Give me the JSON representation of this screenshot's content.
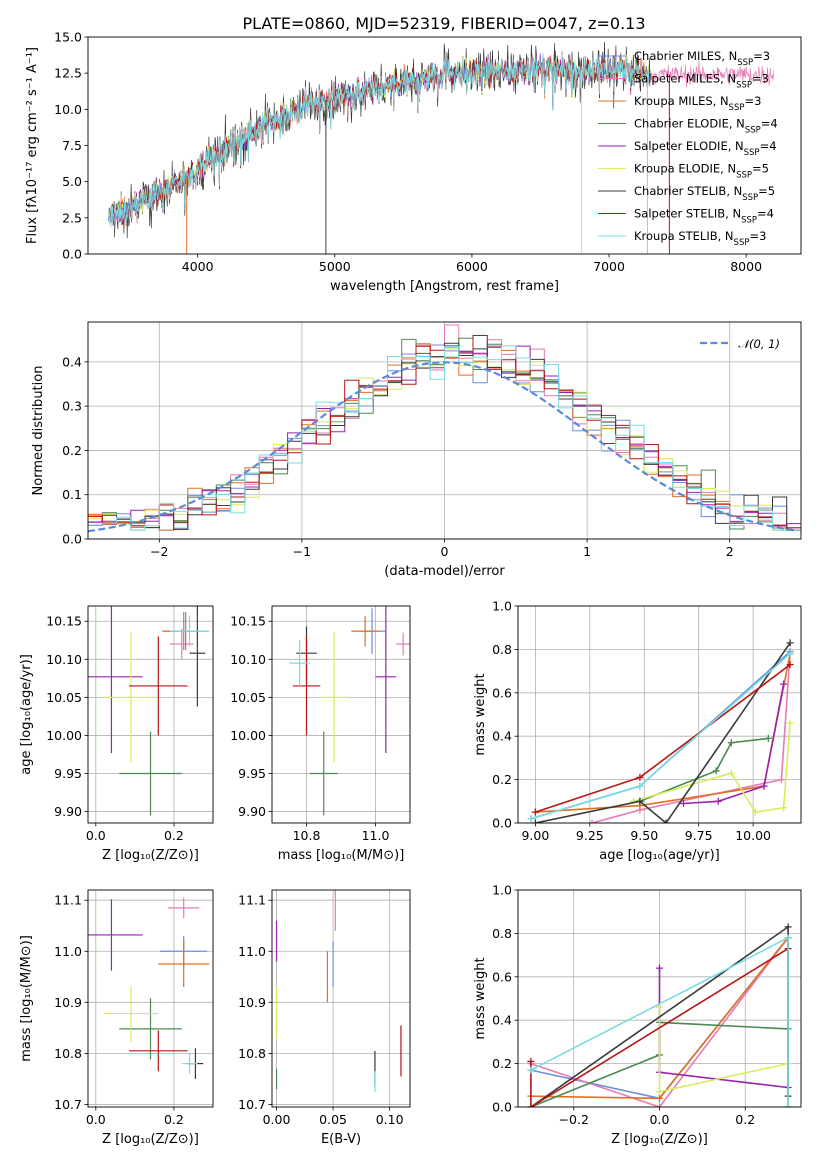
{
  "figure": {
    "title": "PLATE=0860, MJD=52319, FIBERID=0047, z=0.13"
  },
  "colors": {
    "chabrier_miles": "#6a8fe0",
    "salpeter_miles": "#e57ab4",
    "kroupa_miles": "#e07020",
    "chabrier_elodie": "#4a8a50",
    "salpeter_elodie": "#9a22b0",
    "kroupa_elodie": "#d8ec5a",
    "chabrier_stelib": "#3a3a3a",
    "salpeter_stelib": "#b81414",
    "kroupa_stelib": "#7adce0",
    "normal_curve": "#5a8ad8"
  },
  "chart_data": [
    {
      "id": "spectrum",
      "type": "line",
      "title": "PLATE=0860, MJD=52319, FIBERID=0047, z=0.13",
      "xlabel": "wavelength [Angstrom, rest frame]",
      "ylabel": "Flux [fλ10⁻¹⁷ erg cm⁻² s⁻¹ A⁻¹]",
      "xlim": [
        3200,
        8400
      ],
      "ylim": [
        0,
        15
      ],
      "xticks": [
        4000,
        5000,
        6000,
        7000,
        8000
      ],
      "yticks": [
        0.0,
        2.5,
        5.0,
        7.5,
        10.0,
        12.5,
        15.0
      ],
      "legend_position": "top-right",
      "legend": [
        {
          "label": "Chabrier MILES, N",
          "sub": "SSP",
          "suffix": "=3"
        },
        {
          "label": "Salpeter MILES, N",
          "sub": "SSP",
          "suffix": "=3"
        },
        {
          "label": "Kroupa MILES, N",
          "sub": "SSP",
          "suffix": "=3"
        },
        {
          "label": "Chabrier ELODIE, N",
          "sub": "SSP",
          "suffix": "=4"
        },
        {
          "label": "Salpeter ELODIE, N",
          "sub": "SSP",
          "suffix": "=4"
        },
        {
          "label": "Kroupa ELODIE, N",
          "sub": "SSP",
          "suffix": "=5"
        },
        {
          "label": "Chabrier STELIB, N",
          "sub": "SSP",
          "suffix": "=5"
        },
        {
          "label": "Salpeter STELIB, N",
          "sub": "SSP",
          "suffix": "=4"
        },
        {
          "label": "Kroupa STELIB, N",
          "sub": "SSP",
          "suffix": "=3"
        }
      ],
      "continuum": {
        "x": [
          3350,
          3500,
          3650,
          3800,
          3950,
          4100,
          4250,
          4400,
          4600,
          4800,
          5000,
          5200,
          5400,
          5600,
          5800,
          6000,
          6200,
          6400,
          6600,
          6800,
          7000,
          7200,
          7300
        ],
        "y": [
          2.5,
          3.0,
          4.0,
          4.5,
          5.5,
          6.5,
          7.6,
          8.5,
          9.5,
          10.3,
          10.8,
          11.2,
          11.6,
          12.0,
          12.6,
          12.4,
          12.6,
          12.8,
          12.8,
          12.7,
          12.8,
          12.6,
          12.4
        ]
      },
      "spikes": [
        {
          "x": 4935,
          "y": 0.0
        },
        {
          "x": 6800,
          "y": 0.0
        },
        {
          "x": 7440,
          "y": 0.0
        },
        {
          "x": 7280,
          "y": 0.0
        },
        {
          "x": 3920,
          "y": 0.0
        }
      ]
    },
    {
      "id": "residual-hist",
      "type": "step",
      "xlabel": "(data-model)/error",
      "ylabel": "Normed distribution",
      "xlim": [
        -2.5,
        2.5
      ],
      "ylim": [
        0,
        0.49
      ],
      "xticks": [
        -2,
        -1,
        0,
        1,
        2
      ],
      "yticks": [
        0.0,
        0.1,
        0.2,
        0.3,
        0.4
      ],
      "bin_width": 0.1,
      "legend": [
        {
          "label": "𝒩(0, 1)"
        }
      ],
      "legend_position": "top-right"
    },
    {
      "id": "age-vs-Z",
      "type": "errorbar",
      "xlabel": "Z [log₁₀(Z/Z⊙)]",
      "ylabel": "age  [log₁₀(age/yr)]",
      "xlim": [
        -0.02,
        0.3
      ],
      "ylim": [
        9.885,
        10.17
      ],
      "xticks": [
        0.0,
        0.2
      ],
      "yticks": [
        9.9,
        9.95,
        10.0,
        10.05,
        10.1,
        10.15
      ],
      "points": [
        {
          "series": "chabrier_miles",
          "x": 0.225,
          "y": 10.137,
          "xerr": 0.05,
          "yerr": 0.025
        },
        {
          "series": "salpeter_miles",
          "x": 0.22,
          "y": 10.12,
          "xerr": 0.03,
          "yerr": 0.02
        },
        {
          "series": "kroupa_miles",
          "x": 0.23,
          "y": 10.137,
          "xerr": 0.06,
          "yerr": 0.025
        },
        {
          "series": "chabrier_elodie",
          "x": 0.14,
          "y": 9.95,
          "xerr": 0.08,
          "yerr": 0.055
        },
        {
          "series": "salpeter_elodie",
          "x": 0.04,
          "y": 10.077,
          "xerr": 0.08,
          "yerr": 0.1
        },
        {
          "series": "kroupa_elodie",
          "x": 0.09,
          "y": 10.05,
          "xerr": 0.07,
          "yerr": 0.085
        },
        {
          "series": "chabrier_stelib",
          "x": 0.26,
          "y": 10.108,
          "xerr": 0.02,
          "yerr": 0.07
        },
        {
          "series": "salpeter_stelib",
          "x": 0.16,
          "y": 10.065,
          "xerr": 0.075,
          "yerr": 0.065
        },
        {
          "series": "kroupa_stelib",
          "x": 0.24,
          "y": 10.137,
          "xerr": 0.05,
          "yerr": 0.02
        }
      ]
    },
    {
      "id": "age-vs-mass",
      "type": "errorbar",
      "xlabel": "mass [log₁₀(M/M⊙)]",
      "ylabel": "",
      "xlim": [
        10.7,
        11.1
      ],
      "ylim": [
        9.885,
        10.17
      ],
      "xticks": [
        10.8,
        11.0
      ],
      "yticks": [
        9.9,
        9.95,
        10.0,
        10.05,
        10.1,
        10.15
      ],
      "points": [
        {
          "series": "chabrier_miles",
          "x": 10.99,
          "y": 10.137,
          "xerr": 0.04,
          "yerr": 0.03
        },
        {
          "series": "salpeter_miles",
          "x": 11.08,
          "y": 10.12,
          "xerr": 0.02,
          "yerr": 0.015
        },
        {
          "series": "kroupa_miles",
          "x": 10.97,
          "y": 10.137,
          "xerr": 0.04,
          "yerr": 0.02
        },
        {
          "series": "chabrier_elodie",
          "x": 10.85,
          "y": 9.95,
          "xerr": 0.04,
          "yerr": 0.055
        },
        {
          "series": "salpeter_elodie",
          "x": 11.03,
          "y": 10.077,
          "xerr": 0.03,
          "yerr": 0.1
        },
        {
          "series": "kroupa_elodie",
          "x": 10.88,
          "y": 10.05,
          "xerr": 0.04,
          "yerr": 0.085
        },
        {
          "series": "chabrier_stelib",
          "x": 10.8,
          "y": 10.108,
          "xerr": 0.03,
          "yerr": 0.035
        },
        {
          "series": "salpeter_stelib",
          "x": 10.8,
          "y": 10.065,
          "xerr": 0.04,
          "yerr": 0.065
        },
        {
          "series": "kroupa_stelib",
          "x": 10.78,
          "y": 10.095,
          "xerr": 0.03,
          "yerr": 0.03
        }
      ]
    },
    {
      "id": "mass-weight-vs-age",
      "type": "line",
      "xlabel": "age  [log₁₀(age/yr)]",
      "ylabel": "mass weight",
      "xlim": [
        8.92,
        10.22
      ],
      "ylim": [
        0,
        1.0
      ],
      "xticks": [
        9.0,
        9.25,
        9.5,
        9.75,
        10.0
      ],
      "yticks": [
        0.0,
        0.2,
        0.4,
        0.6,
        0.8,
        1.0
      ],
      "series": [
        {
          "name": "chabrier_miles",
          "x": [
            8.98,
            9.48,
            10.17
          ],
          "y": [
            0.02,
            0.17,
            0.79
          ]
        },
        {
          "name": "salpeter_miles",
          "x": [
            9.26,
            9.48,
            10.13,
            10.17
          ],
          "y": [
            0.0,
            0.06,
            0.2,
            0.78
          ]
        },
        {
          "name": "kroupa_miles",
          "x": [
            9.0,
            9.48,
            10.05,
            10.17
          ],
          "y": [
            0.05,
            0.08,
            0.17,
            0.78
          ]
        },
        {
          "name": "chabrier_elodie",
          "x": [
            9.48,
            9.83,
            9.9,
            10.07
          ],
          "y": [
            0.1,
            0.24,
            0.37,
            0.39
          ]
        },
        {
          "name": "salpeter_elodie",
          "x": [
            9.68,
            9.84,
            10.05,
            10.14
          ],
          "y": [
            0.09,
            0.1,
            0.17,
            0.64
          ]
        },
        {
          "name": "kroupa_elodie",
          "x": [
            9.45,
            9.9,
            10.01,
            10.14,
            10.17
          ],
          "y": [
            0.1,
            0.23,
            0.05,
            0.07,
            0.46
          ]
        },
        {
          "name": "chabrier_stelib",
          "x": [
            9.0,
            9.48,
            9.6,
            10.17
          ],
          "y": [
            0.0,
            0.1,
            0.0,
            0.83
          ]
        },
        {
          "name": "salpeter_stelib",
          "x": [
            9.0,
            9.48,
            10.17
          ],
          "y": [
            0.05,
            0.21,
            0.73
          ]
        },
        {
          "name": "kroupa_stelib",
          "x": [
            8.98,
            9.48,
            10.17
          ],
          "y": [
            0.02,
            0.17,
            0.78
          ]
        }
      ]
    },
    {
      "id": "mass-vs-Z",
      "type": "errorbar",
      "xlabel": "Z [log₁₀(Z/Z⊙)]",
      "ylabel": "mass [log₁₀(M/M⊙)]",
      "xlim": [
        -0.02,
        0.3
      ],
      "ylim": [
        10.695,
        11.12
      ],
      "xticks": [
        0.0,
        0.2
      ],
      "yticks": [
        10.7,
        10.8,
        10.9,
        11.0,
        11.1
      ],
      "points": [
        {
          "series": "chabrier_miles",
          "x": 0.225,
          "y": 11.0,
          "xerr": 0.06,
          "yerr": 0.03
        },
        {
          "series": "salpeter_miles",
          "x": 0.225,
          "y": 11.085,
          "xerr": 0.04,
          "yerr": 0.02
        },
        {
          "series": "kroupa_miles",
          "x": 0.225,
          "y": 10.975,
          "xerr": 0.065,
          "yerr": 0.045
        },
        {
          "series": "chabrier_elodie",
          "x": 0.14,
          "y": 10.848,
          "xerr": 0.08,
          "yerr": 0.06
        },
        {
          "series": "salpeter_elodie",
          "x": 0.04,
          "y": 11.032,
          "xerr": 0.08,
          "yerr": 0.07
        },
        {
          "series": "kroupa_elodie",
          "x": 0.09,
          "y": 10.878,
          "xerr": 0.07,
          "yerr": 0.055
        },
        {
          "series": "chabrier_stelib",
          "x": 0.255,
          "y": 10.78,
          "xerr": 0.02,
          "yerr": 0.03
        },
        {
          "series": "salpeter_stelib",
          "x": 0.16,
          "y": 10.805,
          "xerr": 0.075,
          "yerr": 0.04
        },
        {
          "series": "kroupa_stelib",
          "x": 0.24,
          "y": 10.78,
          "xerr": 0.02,
          "yerr": 0.02
        }
      ]
    },
    {
      "id": "mass-vs-ebv",
      "type": "errorbar",
      "xlabel": "E(B-V)",
      "ylabel": "",
      "xlim": [
        -0.004,
        0.118
      ],
      "ylim": [
        10.695,
        11.12
      ],
      "xticks": [
        0.0,
        0.05,
        0.1
      ],
      "yticks": [
        10.7,
        10.8,
        10.9,
        11.0,
        11.1
      ],
      "points": [
        {
          "series": "chabrier_miles",
          "x": 0.05,
          "y": 10.975,
          "xerr": 0.0,
          "yerr": 0.045
        },
        {
          "series": "salpeter_miles",
          "x": 0.052,
          "y": 11.08,
          "xerr": 0.0,
          "yerr": 0.04
        },
        {
          "series": "kroupa_miles",
          "x": 0.045,
          "y": 10.95,
          "xerr": 0.0,
          "yerr": 0.05
        },
        {
          "series": "chabrier_elodie",
          "x": 0.0,
          "y": 10.75,
          "xerr": 0.0,
          "yerr": 0.02
        },
        {
          "series": "salpeter_elodie",
          "x": 0.0,
          "y": 11.02,
          "xerr": 0.0,
          "yerr": 0.04
        },
        {
          "series": "kroupa_elodie",
          "x": 0.0,
          "y": 10.88,
          "xerr": 0.0,
          "yerr": 0.05
        },
        {
          "series": "chabrier_stelib",
          "x": 0.087,
          "y": 10.77,
          "xerr": 0.0,
          "yerr": 0.035
        },
        {
          "series": "salpeter_stelib",
          "x": 0.11,
          "y": 10.805,
          "xerr": 0.0,
          "yerr": 0.05
        },
        {
          "series": "kroupa_stelib",
          "x": 0.087,
          "y": 10.745,
          "xerr": 0.0,
          "yerr": 0.02
        }
      ]
    },
    {
      "id": "mass-weight-vs-Z",
      "type": "line",
      "xlabel": "Z [log₁₀(Z/Z⊙)]",
      "ylabel": "mass weight",
      "xlim": [
        -0.33,
        0.33
      ],
      "ylim": [
        0,
        1.0
      ],
      "xticks": [
        -0.2,
        0.0,
        0.2
      ],
      "yticks": [
        0.0,
        0.2,
        0.4,
        0.6,
        0.8,
        1.0
      ],
      "series": [
        {
          "name": "chabrier_miles",
          "x": [
            -0.3,
            0.0,
            0.3,
            0.3
          ],
          "y": [
            0.17,
            0.04,
            0.78,
            0.0
          ]
        },
        {
          "name": "salpeter_miles",
          "x": [
            -0.3,
            0.0,
            0.3,
            0.3
          ],
          "y": [
            0.2,
            0.0,
            0.78,
            0.0
          ]
        },
        {
          "name": "kroupa_miles",
          "x": [
            -0.3,
            0.0,
            0.3,
            0.3
          ],
          "y": [
            0.05,
            0.04,
            0.78,
            0.0
          ]
        },
        {
          "name": "chabrier_elodie",
          "x": [
            -0.3,
            0.0,
            0.0,
            0.3
          ],
          "y": [
            0.0,
            0.24,
            0.39,
            0.36
          ]
        },
        {
          "name": "salpeter_elodie",
          "x": [
            0.0,
            0.0,
            0.3
          ],
          "y": [
            0.64,
            0.16,
            0.09
          ]
        },
        {
          "name": "kroupa_elodie",
          "x": [
            0.0,
            0.0,
            0.3
          ],
          "y": [
            0.46,
            0.07,
            0.2
          ]
        },
        {
          "name": "chabrier_stelib",
          "x": [
            -0.3,
            0.3,
            0.3
          ],
          "y": [
            0.0,
            0.83,
            0.05
          ]
        },
        {
          "name": "salpeter_stelib",
          "x": [
            -0.3,
            -0.3,
            0.3
          ],
          "y": [
            0.21,
            0.0,
            0.73
          ]
        },
        {
          "name": "kroupa_stelib",
          "x": [
            -0.3,
            0.3,
            0.3
          ],
          "y": [
            0.17,
            0.78,
            0.0
          ]
        }
      ]
    }
  ]
}
